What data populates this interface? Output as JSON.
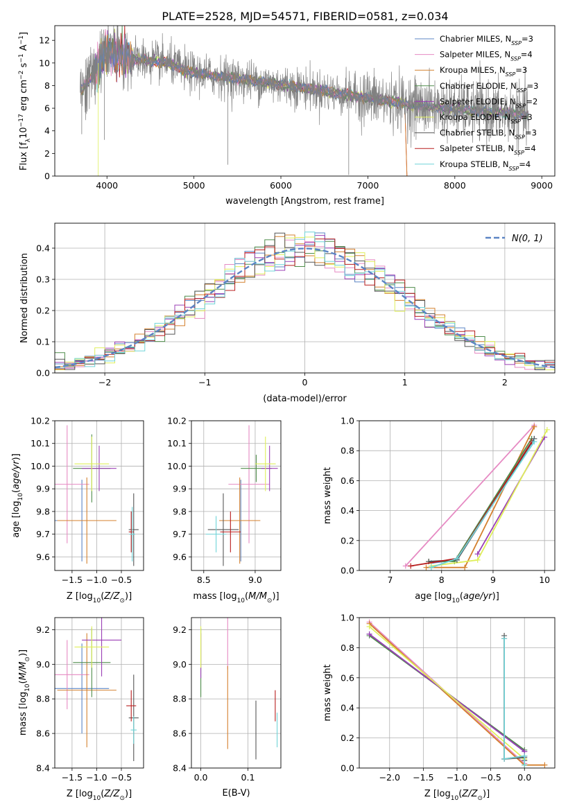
{
  "figure_title": "PLATE=2528, MJD=54571, FIBERID=0581, z=0.034",
  "colors": {
    "chabrier_miles": "#5b84c4",
    "salpeter_miles": "#e68ac3",
    "kroupa_miles": "#d4802e",
    "chabrier_elodie": "#4e8c4a",
    "salpeter_elodie": "#9b3fb5",
    "kroupa_elodie": "#dfef5a",
    "chabrier_stelib": "#555555",
    "salpeter_stelib": "#b81c1c",
    "kroupa_stelib": "#6fd4d8",
    "data": "#808080",
    "gauss": "#5b84c4"
  },
  "chart_data": [
    {
      "type": "line",
      "panel": "spectrum",
      "xlabel": "wavelength [Angstrom, rest frame]",
      "ylabel": "Flux [f_λ 10^-17 erg cm^-2 s^-1 A^-1]",
      "xlim": [
        3400,
        9150
      ],
      "ylim": [
        0,
        13.3
      ],
      "xticks": [
        4000,
        5000,
        6000,
        7000,
        8000,
        9000
      ],
      "yticks": [
        0,
        2,
        4,
        6,
        8,
        10,
        12
      ],
      "legend_position": "top-right",
      "legend": [
        {
          "key": "chabrier_miles",
          "label": "Chabrier MILES, N",
          "sub": "SSP",
          "eq": "=3"
        },
        {
          "key": "salpeter_miles",
          "label": "Salpeter MILES, N",
          "sub": "SSP",
          "eq": "=4"
        },
        {
          "key": "kroupa_miles",
          "label": "Kroupa MILES, N",
          "sub": "SSP",
          "eq": "=3"
        },
        {
          "key": "chabrier_elodie",
          "label": "Chabrier ELODIE, N",
          "sub": "SSP",
          "eq": "=3"
        },
        {
          "key": "salpeter_elodie",
          "label": "Salpeter ELODIE, N",
          "sub": "SSP",
          "eq": "=2"
        },
        {
          "key": "kroupa_elodie",
          "label": "Kroupa ELODIE, N",
          "sub": "SSP",
          "eq": "=3"
        },
        {
          "key": "chabrier_stelib",
          "label": "Chabrier STELIB, N",
          "sub": "SSP",
          "eq": "=3"
        },
        {
          "key": "salpeter_stelib",
          "label": "Salpeter STELIB, N",
          "sub": "SSP",
          "eq": "=4"
        },
        {
          "key": "kroupa_stelib",
          "label": "Kroupa STELIB, N",
          "sub": "SSP",
          "eq": "=4"
        }
      ],
      "continuum": [
        [
          3700,
          7.5
        ],
        [
          3800,
          8.5
        ],
        [
          3900,
          10.0
        ],
        [
          4000,
          11.0
        ],
        [
          4100,
          10.8
        ],
        [
          4300,
          10.3
        ],
        [
          4500,
          10.2
        ],
        [
          4700,
          10.0
        ],
        [
          4900,
          9.3
        ],
        [
          5100,
          9.0
        ],
        [
          5500,
          8.6
        ],
        [
          6000,
          8.1
        ],
        [
          6500,
          7.5
        ],
        [
          7000,
          6.9
        ],
        [
          7500,
          6.3
        ],
        [
          8000,
          5.9
        ],
        [
          8500,
          5.6
        ],
        [
          8850,
          5.4
        ]
      ]
    },
    {
      "type": "line",
      "panel": "residuals",
      "xlabel": "(data-model)/error",
      "ylabel": "Normed distribution",
      "xlim": [
        -2.5,
        2.5
      ],
      "ylim": [
        0,
        0.48
      ],
      "xticks": [
        -2,
        -1,
        0,
        1,
        2
      ],
      "yticks": [
        0.0,
        0.1,
        0.2,
        0.3,
        0.4
      ],
      "legend_position": "top-right",
      "gauss_label": "N(0, 1)",
      "bin_width": 0.1
    },
    {
      "type": "scatter",
      "panel": "age_vs_Z",
      "xlabel": "Z [log10(Z/Z☉)]",
      "ylabel": "age [log10(age/yr)]",
      "xlim": [
        -1.85,
        -0.05
      ],
      "ylim": [
        9.54,
        10.2
      ],
      "xticks": [
        -1.5,
        -1.0,
        -0.5
      ],
      "yticks": [
        9.6,
        9.7,
        9.8,
        9.9,
        10.0,
        10.1,
        10.2
      ],
      "points": [
        {
          "key": "chabrier_miles",
          "x": -1.3,
          "xerr": 0.55,
          "y": 9.76,
          "yerr": 0.18
        },
        {
          "key": "salpeter_miles",
          "x": -1.6,
          "xerr": 0.45,
          "y": 9.92,
          "yerr": 0.26
        },
        {
          "key": "kroupa_miles",
          "x": -1.2,
          "xerr": 0.6,
          "y": 9.76,
          "yerr": 0.19
        },
        {
          "key": "chabrier_elodie",
          "x": -1.1,
          "xerr": 0.38,
          "y": 9.99,
          "yerr": 0.15
        },
        {
          "key": "salpeter_elodie",
          "x": -0.95,
          "xerr": 0.35,
          "y": 9.99,
          "yerr": 0.1
        },
        {
          "key": "kroupa_elodie",
          "x": -1.1,
          "xerr": 0.35,
          "y": 10.01,
          "yerr": 0.12
        },
        {
          "key": "chabrier_stelib",
          "x": -0.25,
          "xerr": 0.1,
          "y": 9.72,
          "yerr": 0.16
        },
        {
          "key": "salpeter_stelib",
          "x": -0.3,
          "xerr": 0.05,
          "y": 9.71,
          "yerr": 0.09
        },
        {
          "key": "kroupa_stelib",
          "x": -0.28,
          "xerr": 0.06,
          "y": 9.7,
          "yerr": 0.12
        }
      ]
    },
    {
      "type": "scatter",
      "panel": "age_vs_mass",
      "xlabel": "mass [log10(M/M☉)]",
      "ylabel": "",
      "xlim": [
        8.38,
        9.25
      ],
      "ylim": [
        9.54,
        10.2
      ],
      "xticks": [
        8.5,
        9.0
      ],
      "yticks": [
        9.6,
        9.7,
        9.8,
        9.9,
        10.0,
        10.1,
        10.2
      ],
      "points": [
        {
          "key": "chabrier_miles",
          "x": 8.86,
          "xerr": 0.15,
          "y": 9.76,
          "yerr": 0.18
        },
        {
          "key": "salpeter_miles",
          "x": 8.94,
          "xerr": 0.2,
          "y": 9.92,
          "yerr": 0.26
        },
        {
          "key": "kroupa_miles",
          "x": 8.85,
          "xerr": 0.2,
          "y": 9.76,
          "yerr": 0.19
        },
        {
          "key": "chabrier_elodie",
          "x": 9.01,
          "xerr": 0.15,
          "y": 9.99,
          "yerr": 0.06
        },
        {
          "key": "salpeter_elodie",
          "x": 9.14,
          "xerr": 0.08,
          "y": 9.99,
          "yerr": 0.1
        },
        {
          "key": "kroupa_elodie",
          "x": 9.1,
          "xerr": 0.1,
          "y": 10.01,
          "yerr": 0.12
        },
        {
          "key": "chabrier_stelib",
          "x": 8.69,
          "xerr": 0.15,
          "y": 9.72,
          "yerr": 0.16
        },
        {
          "key": "salpeter_stelib",
          "x": 8.76,
          "xerr": 0.1,
          "y": 9.71,
          "yerr": 0.09
        },
        {
          "key": "kroupa_stelib",
          "x": 8.62,
          "xerr": 0.1,
          "y": 9.7,
          "yerr": 0.08
        }
      ]
    },
    {
      "type": "line",
      "panel": "weight_vs_age",
      "xlabel": "age [log10(age/yr)]",
      "ylabel": "mass weight",
      "xlim": [
        6.4,
        10.2
      ],
      "ylim": [
        0,
        1.0
      ],
      "xticks": [
        7,
        8,
        9,
        10
      ],
      "yticks": [
        0.0,
        0.2,
        0.4,
        0.6,
        0.8,
        1.0
      ],
      "series": [
        {
          "key": "chabrier_miles",
          "x": [
            7.8,
            8.3,
            9.8
          ],
          "y": [
            0.05,
            0.07,
            0.88
          ]
        },
        {
          "key": "salpeter_miles",
          "x": [
            7.3,
            9.8
          ],
          "y": [
            0.03,
            0.97
          ]
        },
        {
          "key": "kroupa_miles",
          "x": [
            7.7,
            8.45,
            9.8
          ],
          "y": [
            0.02,
            0.02,
            0.96
          ]
        },
        {
          "key": "chabrier_elodie",
          "x": [
            7.75,
            8.25,
            9.75
          ],
          "y": [
            0.06,
            0.06,
            0.88
          ]
        },
        {
          "key": "salpeter_elodie",
          "x": [
            8.7,
            10.0
          ],
          "y": [
            0.11,
            0.89
          ]
        },
        {
          "key": "kroupa_elodie",
          "x": [
            7.8,
            8.7,
            10.05
          ],
          "y": [
            0.03,
            0.07,
            0.94
          ]
        },
        {
          "key": "chabrier_stelib",
          "x": [
            7.75,
            8.3,
            9.8
          ],
          "y": [
            0.06,
            0.07,
            0.88
          ]
        },
        {
          "key": "salpeter_stelib",
          "x": [
            7.4,
            8.3,
            9.75
          ],
          "y": [
            0.03,
            0.08,
            0.86
          ]
        },
        {
          "key": "kroupa_stelib",
          "x": [
            7.8,
            8.3,
            9.8
          ],
          "y": [
            0.02,
            0.08,
            0.86
          ]
        }
      ]
    },
    {
      "type": "scatter",
      "panel": "mass_vs_Z",
      "xlabel": "Z [log10(Z/Z☉)]",
      "ylabel": "mass [log10(M/M☉)]",
      "xlim": [
        -1.85,
        -0.05
      ],
      "ylim": [
        8.4,
        9.27
      ],
      "xticks": [
        -1.5,
        -1.0,
        -0.5
      ],
      "yticks": [
        8.4,
        8.6,
        8.8,
        9.0,
        9.2
      ],
      "points": [
        {
          "key": "chabrier_miles",
          "x": -1.3,
          "xerr": 0.55,
          "y": 8.86,
          "yerr": 0.26
        },
        {
          "key": "salpeter_miles",
          "x": -1.6,
          "xerr": 0.45,
          "y": 8.94,
          "yerr": 0.2
        },
        {
          "key": "kroupa_miles",
          "x": -1.2,
          "xerr": 0.6,
          "y": 8.85,
          "yerr": 0.33
        },
        {
          "key": "chabrier_elodie",
          "x": -1.1,
          "xerr": 0.38,
          "y": 9.01,
          "yerr": 0.2
        },
        {
          "key": "salpeter_elodie",
          "x": -0.9,
          "xerr": 0.4,
          "y": 9.14,
          "yerr": 0.21
        },
        {
          "key": "kroupa_elodie",
          "x": -1.1,
          "xerr": 0.35,
          "y": 9.1,
          "yerr": 0.12
        },
        {
          "key": "chabrier_stelib",
          "x": -0.25,
          "xerr": 0.1,
          "y": 8.69,
          "yerr": 0.25
        },
        {
          "key": "salpeter_stelib",
          "x": -0.3,
          "xerr": 0.1,
          "y": 8.76,
          "yerr": 0.09
        },
        {
          "key": "kroupa_stelib",
          "x": -0.25,
          "xerr": 0.06,
          "y": 8.62,
          "yerr": 0.08
        }
      ]
    },
    {
      "type": "scatter",
      "panel": "mass_vs_EBV",
      "xlabel": "E(B-V)",
      "ylabel": "",
      "xlim": [
        -0.02,
        0.17
      ],
      "ylim": [
        8.4,
        9.27
      ],
      "xticks": [
        0.0,
        0.1
      ],
      "yticks": [
        8.4,
        8.6,
        8.8,
        9.0,
        9.2
      ],
      "points": [
        {
          "key": "chabrier_elodie",
          "x": 0.0,
          "y": 9.01,
          "yerr": 0.2
        },
        {
          "key": "salpeter_elodie",
          "x": 0.0,
          "y": 9.05,
          "yerr": 0.13
        },
        {
          "key": "kroupa_elodie",
          "x": 0.0,
          "y": 9.1,
          "yerr": 0.12
        },
        {
          "key": "salpeter_miles",
          "x": 0.057,
          "y": 9.14,
          "yerr": 0.17
        },
        {
          "key": "kroupa_miles",
          "x": 0.057,
          "y": 8.75,
          "yerr": 0.24
        },
        {
          "key": "chabrier_stelib",
          "x": 0.117,
          "y": 8.62,
          "yerr": 0.17
        },
        {
          "key": "salpeter_stelib",
          "x": 0.158,
          "y": 8.76,
          "yerr": 0.09
        },
        {
          "key": "kroupa_stelib",
          "x": 0.162,
          "y": 8.62,
          "yerr": 0.1
        }
      ]
    },
    {
      "type": "line",
      "panel": "weight_vs_Z",
      "xlabel": "Z [log10(Z/Z☉)]",
      "ylabel": "mass weight",
      "xlim": [
        -2.45,
        0.45
      ],
      "ylim": [
        0,
        1.0
      ],
      "xticks": [
        -2.0,
        -1.5,
        -1.0,
        -0.5,
        0.0
      ],
      "yticks": [
        0.0,
        0.2,
        0.4,
        0.6,
        0.8,
        1.0
      ],
      "series": [
        {
          "key": "chabrier_miles",
          "x": [
            -2.3,
            0.0
          ],
          "y": [
            0.89,
            0.11
          ]
        },
        {
          "key": "salpeter_miles",
          "x": [
            -2.3,
            0.0
          ],
          "y": [
            0.97,
            0.03
          ]
        },
        {
          "key": "kroupa_miles",
          "x": [
            -2.3,
            0.0,
            0.3
          ],
          "y": [
            0.96,
            0.02,
            0.02
          ]
        },
        {
          "key": "chabrier_elodie",
          "x": [
            -2.3,
            0.0
          ],
          "y": [
            0.88,
            0.12
          ]
        },
        {
          "key": "salpeter_elodie",
          "x": [
            -2.3,
            0.0
          ],
          "y": [
            0.89,
            0.11
          ]
        },
        {
          "key": "kroupa_elodie",
          "x": [
            -2.3,
            0.0
          ],
          "y": [
            0.94,
            0.06
          ]
        },
        {
          "key": "chabrier_stelib",
          "x": [
            -0.3,
            -0.3,
            0.0,
            0.0
          ],
          "y": [
            0.88,
            0.06,
            0.07,
            0.05
          ]
        },
        {
          "key": "salpeter_stelib",
          "x": [
            -0.3,
            -0.3,
            0.0
          ],
          "y": [
            0.86,
            0.06,
            0.08
          ]
        },
        {
          "key": "kroupa_stelib",
          "x": [
            -0.3,
            -0.3,
            0.0,
            0.0
          ],
          "y": [
            0.86,
            0.06,
            0.08,
            0.02
          ]
        }
      ]
    }
  ]
}
